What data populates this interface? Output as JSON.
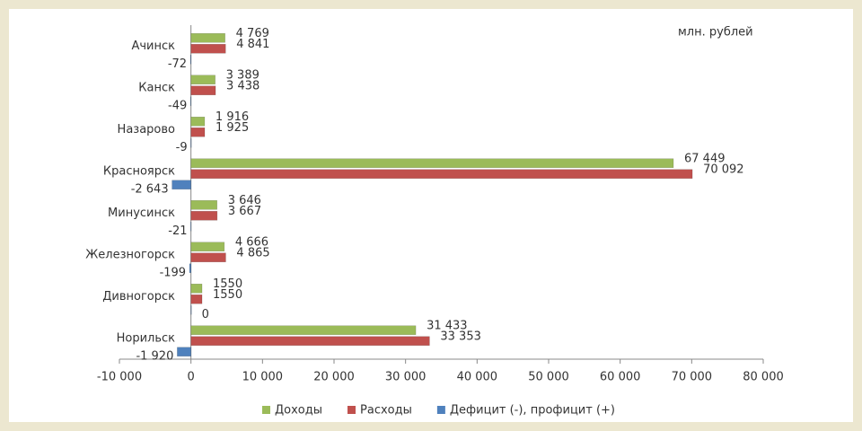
{
  "chart_data": {
    "type": "hbar",
    "annotation": "млн. рублей",
    "categories": [
      "Ачинск",
      "Канск",
      "Назарово",
      "Красноярск",
      "Минусинск",
      "Железногорск",
      "Дивногорск",
      "Норильск"
    ],
    "series": [
      {
        "name": "Доходы",
        "color": "#9bbb59",
        "values": [
          4769,
          3389,
          1916,
          67449,
          3646,
          4666,
          1550,
          31433
        ],
        "value_labels": [
          "4 769",
          "3 389",
          "1 916",
          "67 449",
          "3 646",
          "4 666",
          "1550",
          "31 433"
        ]
      },
      {
        "name": "Расходы",
        "color": "#c0504d",
        "values": [
          4841,
          3438,
          1925,
          70092,
          3667,
          4865,
          1550,
          33353
        ],
        "value_labels": [
          "4 841",
          "3 438",
          "1 925",
          "70 092",
          "3 667",
          "4 865",
          "1550",
          "33 353"
        ]
      },
      {
        "name": "Дефицит (-), профицит (+)",
        "color": "#4f81bd",
        "values": [
          -72,
          -49,
          -9,
          -2643,
          -21,
          -199,
          0,
          -1920
        ],
        "value_labels": [
          "-72",
          "-49",
          "-9",
          "-2 643",
          "-21",
          "-199",
          "0",
          "-1 920"
        ]
      }
    ],
    "xlim": [
      -10000,
      80000
    ],
    "xticks": [
      {
        "value": -10000,
        "label": "-10 000"
      },
      0,
      {
        "value": 10000,
        "label": "10 000"
      },
      {
        "value": 20000,
        "label": "20 000"
      },
      {
        "value": 30000,
        "label": "30 000"
      },
      {
        "value": 40000,
        "label": "40 000"
      },
      {
        "value": 50000,
        "label": "50 000"
      },
      {
        "value": 60000,
        "label": "60 000"
      },
      {
        "value": 70000,
        "label": "70 000"
      },
      {
        "value": 80000,
        "label": "80 000"
      }
    ],
    "grid": false,
    "legend": "bottom"
  }
}
